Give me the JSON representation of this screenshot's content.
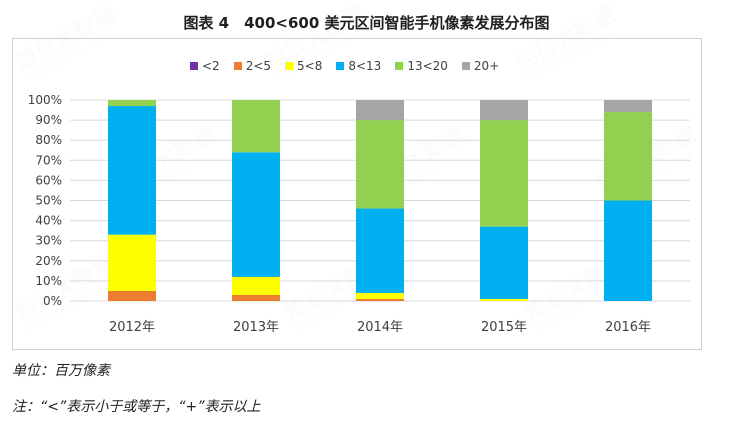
{
  "chart_data": {
    "type": "bar",
    "stacked": true,
    "title": "图表 4　400<600 美元区间智能手机像素发展分布图",
    "categories": [
      "2012年",
      "2013年",
      "2014年",
      "2015年",
      "2016年"
    ],
    "ylim": [
      0,
      100
    ],
    "yticks": [
      "0%",
      "10%",
      "20%",
      "30%",
      "40%",
      "50%",
      "60%",
      "70%",
      "80%",
      "90%",
      "100%"
    ],
    "grid": true,
    "legend_position": "top",
    "series": [
      {
        "name": "<2",
        "color": "#7030a0",
        "values": [
          0,
          0,
          0,
          0,
          0
        ]
      },
      {
        "name": "2<5",
        "color": "#ed7d31",
        "values": [
          5,
          3,
          1,
          0,
          0
        ]
      },
      {
        "name": "5<8",
        "color": "#ffff00",
        "values": [
          28,
          9,
          3,
          1,
          0
        ]
      },
      {
        "name": "8<13",
        "color": "#00b0f0",
        "values": [
          64,
          62,
          42,
          36,
          50
        ]
      },
      {
        "name": "13<20",
        "color": "#92d050",
        "values": [
          3,
          26,
          44,
          53,
          44
        ]
      },
      {
        "name": "20+",
        "color": "#a5a5a5",
        "values": [
          0,
          0,
          10,
          10,
          6
        ]
      }
    ]
  },
  "watermark": {
    "cn": "旭日大数据",
    "en": "SUNRISE BIG DATA"
  },
  "notes": {
    "unit": "单位：百万像素",
    "remark": "注：“<”表示小于或等于，“+”表示以上"
  }
}
